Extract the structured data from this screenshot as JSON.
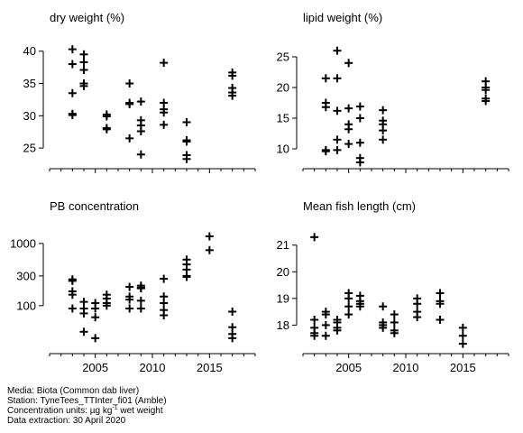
{
  "chart_data": [
    {
      "type": "scatter",
      "title": "dry weight (%)",
      "xlabel": "",
      "ylabel": "",
      "xlim": [
        2001,
        2019
      ],
      "ylim": [
        22.5,
        41.5
      ],
      "yscale": "linear",
      "yticks": [
        25,
        30,
        35,
        40
      ],
      "ytick_labels": [
        "25",
        "30",
        "35",
        "40"
      ],
      "xticks": [
        2005,
        2010,
        2015
      ],
      "xtick_labels": [
        "",
        "",
        ""
      ],
      "marker": "plus",
      "points": [
        [
          2003,
          40.3
        ],
        [
          2003,
          38.0
        ],
        [
          2003,
          33.5
        ],
        [
          2003,
          30.3
        ],
        [
          2003,
          30.1
        ],
        [
          2004,
          39.5
        ],
        [
          2004,
          38.3
        ],
        [
          2004,
          37.1
        ],
        [
          2004,
          35.0
        ],
        [
          2004,
          34.6
        ],
        [
          2006,
          30.2
        ],
        [
          2006,
          29.9
        ],
        [
          2006,
          28.1
        ],
        [
          2006,
          27.9
        ],
        [
          2008,
          35.0
        ],
        [
          2008,
          32.0
        ],
        [
          2008,
          31.8
        ],
        [
          2008,
          26.5
        ],
        [
          2009,
          32.2
        ],
        [
          2009,
          29.3
        ],
        [
          2009,
          28.5
        ],
        [
          2009,
          27.6
        ],
        [
          2009,
          24.0
        ],
        [
          2011,
          38.2
        ],
        [
          2011,
          32.0
        ],
        [
          2011,
          31.0
        ],
        [
          2011,
          30.5
        ],
        [
          2011,
          28.6
        ],
        [
          2013,
          29.0
        ],
        [
          2013,
          26.2
        ],
        [
          2013,
          26.0
        ],
        [
          2013,
          23.9
        ],
        [
          2013,
          23.3
        ],
        [
          2017,
          36.7
        ],
        [
          2017,
          36.2
        ],
        [
          2017,
          34.3
        ],
        [
          2017,
          33.6
        ],
        [
          2017,
          33.1
        ]
      ]
    },
    {
      "type": "scatter",
      "title": "lipid weight (%)",
      "xlabel": "",
      "ylabel": "",
      "xlim": [
        2001,
        2019
      ],
      "ylim": [
        7.5,
        27.5
      ],
      "yscale": "linear",
      "yticks": [
        10,
        15,
        20,
        25
      ],
      "ytick_labels": [
        "10",
        "15",
        "20",
        "25"
      ],
      "xticks": [
        2005,
        2010,
        2015
      ],
      "xtick_labels": [
        "",
        "",
        ""
      ],
      "marker": "plus",
      "points": [
        [
          2003,
          21.5
        ],
        [
          2003,
          17.5
        ],
        [
          2003,
          16.8
        ],
        [
          2003,
          9.8
        ],
        [
          2003,
          9.6
        ],
        [
          2004,
          26.0
        ],
        [
          2004,
          21.5
        ],
        [
          2004,
          16.2
        ],
        [
          2004,
          11.5
        ],
        [
          2004,
          9.8
        ],
        [
          2005,
          24.0
        ],
        [
          2005,
          16.6
        ],
        [
          2005,
          14.0
        ],
        [
          2005,
          13.2
        ],
        [
          2005,
          10.8
        ],
        [
          2006,
          16.9
        ],
        [
          2006,
          15.0
        ],
        [
          2006,
          11.0
        ],
        [
          2006,
          8.5
        ],
        [
          2006,
          7.8
        ],
        [
          2008,
          16.3
        ],
        [
          2008,
          14.6
        ],
        [
          2008,
          14.0
        ],
        [
          2008,
          13.0
        ],
        [
          2008,
          11.5
        ],
        [
          2017,
          21.0
        ],
        [
          2017,
          20.0
        ],
        [
          2017,
          19.6
        ],
        [
          2017,
          18.2
        ],
        [
          2017,
          17.8
        ]
      ]
    },
    {
      "type": "scatter",
      "title": "PB concentration",
      "xlabel": "",
      "ylabel": "",
      "xlim": [
        2001,
        2019
      ],
      "ylim": [
        20,
        1700
      ],
      "yscale": "log",
      "yticks": [
        100,
        300,
        1000
      ],
      "ytick_labels": [
        "100",
        "300",
        "1000"
      ],
      "xticks": [
        2005,
        2010,
        2015
      ],
      "xtick_labels": [
        "2005",
        "2010",
        "2015"
      ],
      "marker": "plus",
      "points": [
        [
          2003,
          265
        ],
        [
          2003,
          250
        ],
        [
          2003,
          170
        ],
        [
          2003,
          150
        ],
        [
          2003,
          90
        ],
        [
          2004,
          115
        ],
        [
          2004,
          90
        ],
        [
          2004,
          75
        ],
        [
          2004,
          38
        ],
        [
          2005,
          110
        ],
        [
          2005,
          90
        ],
        [
          2005,
          65
        ],
        [
          2005,
          30
        ],
        [
          2006,
          150
        ],
        [
          2006,
          130
        ],
        [
          2006,
          110
        ],
        [
          2006,
          100
        ],
        [
          2008,
          200
        ],
        [
          2008,
          140
        ],
        [
          2008,
          125
        ],
        [
          2008,
          90
        ],
        [
          2009,
          210
        ],
        [
          2009,
          195
        ],
        [
          2009,
          190
        ],
        [
          2009,
          120
        ],
        [
          2009,
          90
        ],
        [
          2011,
          270
        ],
        [
          2011,
          140
        ],
        [
          2011,
          110
        ],
        [
          2011,
          85
        ],
        [
          2011,
          70
        ],
        [
          2013,
          550
        ],
        [
          2013,
          460
        ],
        [
          2013,
          380
        ],
        [
          2013,
          300
        ],
        [
          2013,
          290
        ],
        [
          2015,
          1300
        ],
        [
          2015,
          780
        ],
        [
          2017,
          80
        ],
        [
          2017,
          45
        ],
        [
          2017,
          35
        ],
        [
          2017,
          30
        ]
      ]
    },
    {
      "type": "scatter",
      "title": "Mean fish length (cm)",
      "xlabel": "",
      "ylabel": "",
      "xlim": [
        2001,
        2019
      ],
      "ylim": [
        17.1,
        21.6
      ],
      "yscale": "linear",
      "yticks": [
        18,
        19,
        20,
        21
      ],
      "ytick_labels": [
        "18",
        "19",
        "20",
        "21"
      ],
      "xticks": [
        2005,
        2010,
        2015
      ],
      "xtick_labels": [
        "2005",
        "2010",
        "2015"
      ],
      "marker": "plus",
      "points": [
        [
          2002,
          21.3
        ],
        [
          2002,
          18.2
        ],
        [
          2002,
          17.9
        ],
        [
          2002,
          17.7
        ],
        [
          2002,
          17.6
        ],
        [
          2003,
          18.5
        ],
        [
          2003,
          18.4
        ],
        [
          2003,
          18.0
        ],
        [
          2003,
          17.6
        ],
        [
          2004,
          18.2
        ],
        [
          2004,
          18.1
        ],
        [
          2004,
          17.9
        ],
        [
          2004,
          17.8
        ],
        [
          2005,
          19.2
        ],
        [
          2005,
          19.0
        ],
        [
          2005,
          18.7
        ],
        [
          2005,
          18.4
        ],
        [
          2006,
          19.1
        ],
        [
          2006,
          18.9
        ],
        [
          2006,
          18.8
        ],
        [
          2006,
          18.7
        ],
        [
          2008,
          18.7
        ],
        [
          2008,
          18.1
        ],
        [
          2008,
          18.0
        ],
        [
          2008,
          17.9
        ],
        [
          2009,
          18.4
        ],
        [
          2009,
          18.1
        ],
        [
          2009,
          17.8
        ],
        [
          2009,
          17.7
        ],
        [
          2011,
          19.0
        ],
        [
          2011,
          18.8
        ],
        [
          2011,
          18.5
        ],
        [
          2011,
          18.3
        ],
        [
          2013,
          19.2
        ],
        [
          2013,
          18.9
        ],
        [
          2013,
          18.8
        ],
        [
          2013,
          18.2
        ],
        [
          2015,
          17.9
        ],
        [
          2015,
          17.6
        ],
        [
          2015,
          17.3
        ]
      ]
    }
  ],
  "footer": {
    "media": "Media: Biota (Common dab liver)",
    "station": "Station: TyneTees_TTInter_fi01 (Amble)",
    "units_prefix": "Concentration units:  µg kg",
    "units_sup": "-1",
    "units_suffix": " wet weight",
    "extraction": "Data extraction: 30 April 2020"
  }
}
